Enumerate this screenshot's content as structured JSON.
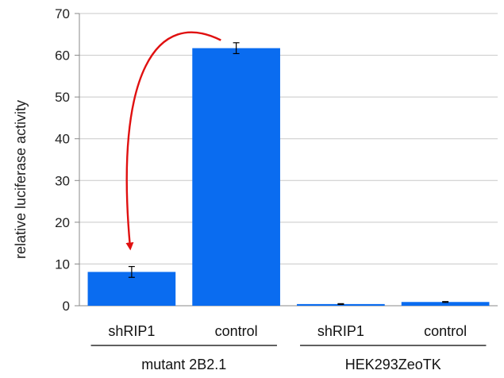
{
  "chart_data": {
    "type": "bar",
    "ylabel": "relative luciferase activity",
    "ylim": [
      0,
      70
    ],
    "yticks": [
      0,
      10,
      20,
      30,
      40,
      50,
      60,
      70
    ],
    "grid": true,
    "bar_color": "#0a6cf0",
    "annotation_color": "#e01010",
    "categories": [
      "shRIP1",
      "control",
      "shRIP1",
      "control"
    ],
    "groups": [
      {
        "label": "mutant 2B2.1",
        "categories": [
          0,
          1
        ]
      },
      {
        "label": "HEK293ZeoTK",
        "categories": [
          2,
          3
        ]
      }
    ],
    "values": [
      8.1,
      61.7,
      0.4,
      0.9
    ],
    "errors": [
      1.3,
      1.3,
      0.1,
      0.1
    ],
    "annotation": {
      "type": "curved-arrow",
      "from_category": 1,
      "to_category": 0
    }
  }
}
